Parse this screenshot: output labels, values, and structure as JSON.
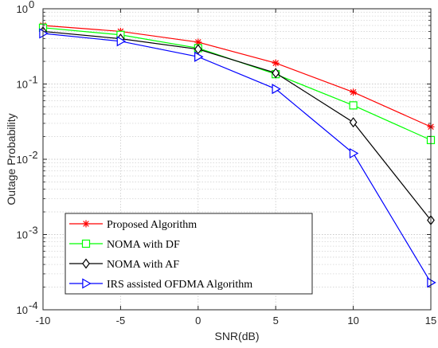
{
  "chart_data": {
    "type": "line",
    "xlabel": "SNR(dB)",
    "ylabel": "Outage Probability",
    "x": [
      -10,
      -5,
      0,
      5,
      10,
      15
    ],
    "xlim": [
      -10,
      15
    ],
    "xticks": [
      -10,
      -5,
      0,
      5,
      10,
      15
    ],
    "xtick_labels": [
      "-10",
      "-5",
      "0",
      "5",
      "10",
      "15"
    ],
    "ylim": [
      0.0001,
      1
    ],
    "yscale": "log",
    "yticks": [
      {
        "value": 1,
        "base": "10",
        "exp": "0"
      },
      {
        "value": 0.1,
        "base": "10",
        "exp": "-1"
      },
      {
        "value": 0.01,
        "base": "10",
        "exp": "-2"
      },
      {
        "value": 0.001,
        "base": "10",
        "exp": "-3"
      },
      {
        "value": 0.0001,
        "base": "10",
        "exp": "-4"
      }
    ],
    "grid": true,
    "legend_position": "bottom-left",
    "series": [
      {
        "name": "Proposed Algorithm",
        "color": "#ff0000",
        "marker": "asterisk",
        "values": [
          0.6,
          0.5,
          0.36,
          0.19,
          0.078,
          0.027
        ]
      },
      {
        "name": "NOMA with DF",
        "color": "#00ff00",
        "marker": "square",
        "values": [
          0.56,
          0.45,
          0.3,
          0.135,
          0.052,
          0.018
        ]
      },
      {
        "name": "NOMA with AF",
        "color": "#000000",
        "marker": "diamond",
        "values": [
          0.5,
          0.4,
          0.29,
          0.14,
          0.031,
          0.00155
        ]
      },
      {
        "name": "IRS assisted OFDMA Algorithm",
        "color": "#0000ff",
        "marker": "triangle-right",
        "values": [
          0.47,
          0.37,
          0.23,
          0.086,
          0.012,
          0.00023
        ]
      }
    ]
  }
}
